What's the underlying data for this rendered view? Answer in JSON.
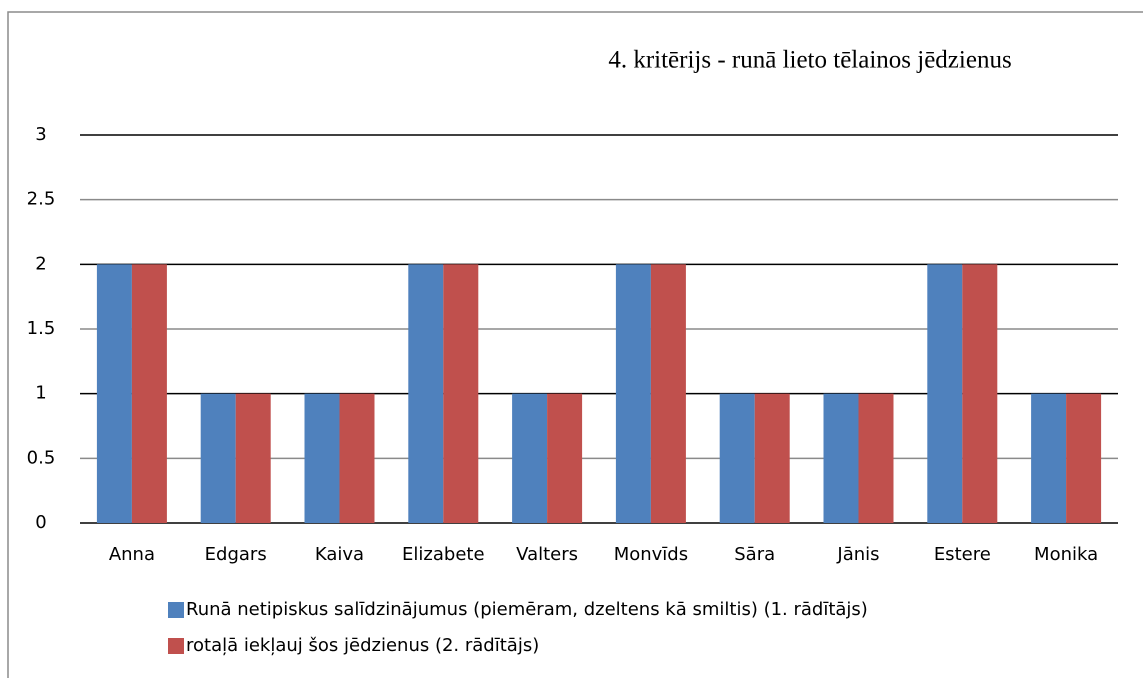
{
  "chart_data": {
    "type": "bar",
    "title": "4. kritērijs - runā lieto tēlainos jēdzienus",
    "categories": [
      "Anna",
      "Edgars",
      "Kaiva",
      "Elizabete",
      "Valters",
      "Monvīds",
      "Sāra",
      "Jānis",
      "Estere",
      "Monika"
    ],
    "series": [
      {
        "name": "Runā netipiskus salīdzinājumus (piemēram, dzeltens kā smiltis) (1. rādītājs)",
        "color": "#4f81bd",
        "values": [
          2,
          1,
          1,
          2,
          1,
          2,
          1,
          1,
          2,
          1
        ]
      },
      {
        "name": "rotaļā iekļauj šos jēdzienus (2. rādītājs)",
        "color": "#c0504d",
        "values": [
          2,
          1,
          1,
          2,
          1,
          2,
          1,
          1,
          2,
          1
        ]
      }
    ],
    "ylim": [
      0,
      3
    ],
    "yticks": [
      0,
      0.5,
      1,
      1.5,
      2,
      2.5,
      3
    ],
    "grid": true,
    "legend": "bottom"
  }
}
